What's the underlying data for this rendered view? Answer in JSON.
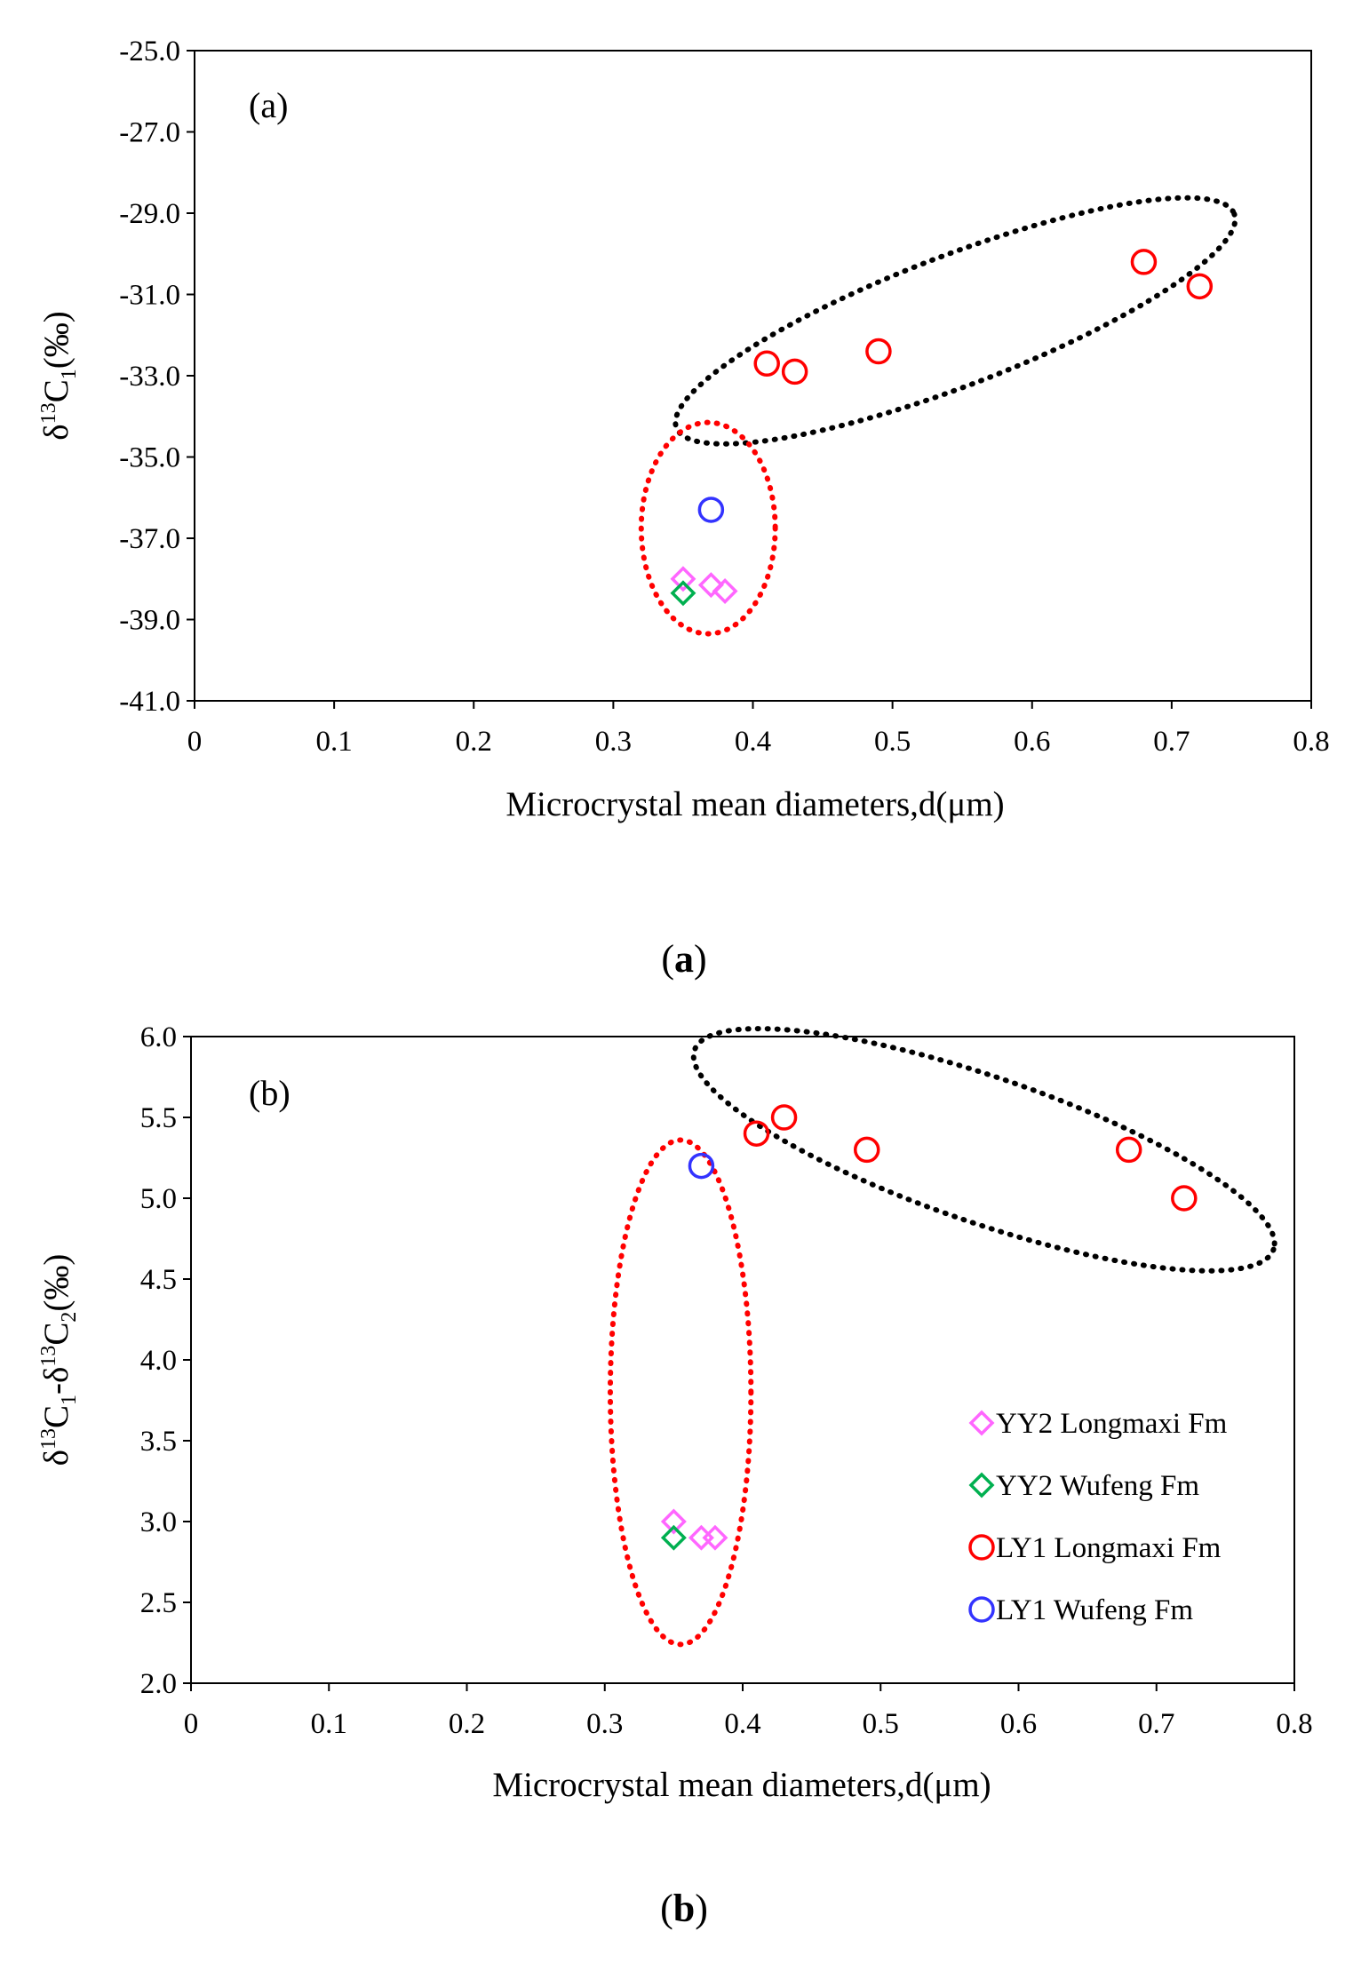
{
  "charts": [
    {
      "type": "scatter",
      "panel_label": "(a)",
      "caption_letter": "a",
      "xlabel": "Microcrystal mean diameters,d(μm)",
      "ylabel": {
        "pre": "δ",
        "sup1": "13",
        "base": "C",
        "sub1": "1",
        "post": "(‰)"
      },
      "xlim": [
        0,
        0.8
      ],
      "ylim": [
        -41.0,
        -25.0
      ],
      "xticks": [
        "0",
        "0.1",
        "0.2",
        "0.3",
        "0.4",
        "0.5",
        "0.6",
        "0.7",
        "0.8"
      ],
      "yticks": [
        "-41.0",
        "-39.0",
        "-37.0",
        "-35.0",
        "-33.0",
        "-31.0",
        "-29.0",
        "-27.0",
        "-25.0"
      ],
      "series": [
        {
          "name": "YY2 Longmaxi Fm",
          "marker": "diamond",
          "color": "#ff66ff",
          "x": [
            0.35,
            0.37,
            0.38
          ],
          "y": [
            -38.0,
            -38.15,
            -38.3
          ]
        },
        {
          "name": "YY2 Wufeng Fm",
          "marker": "diamond",
          "color": "#00b050",
          "x": [
            0.35
          ],
          "y": [
            -38.35
          ]
        },
        {
          "name": "LY1 Longmaxi Fm",
          "marker": "circle",
          "color": "#ff0000",
          "x": [
            0.41,
            0.43,
            0.49,
            0.68,
            0.72
          ],
          "y": [
            -32.7,
            -32.9,
            -32.4,
            -30.2,
            -30.8
          ]
        },
        {
          "name": "LY1 Wufeng Fm",
          "marker": "circle",
          "color": "#3333ff",
          "x": [
            0.37
          ],
          "y": [
            -36.3
          ]
        }
      ],
      "groupings": [
        {
          "name": "black-group",
          "color": "#000000",
          "cx": 0.545,
          "cy": -31.65,
          "rx": 0.214,
          "ry": 1.6,
          "rotate_deg": -21
        },
        {
          "name": "red-group",
          "color": "#ff0000",
          "cx": 0.368,
          "cy": -36.75,
          "rx": 0.048,
          "ry": 2.6,
          "rotate_deg": 0
        }
      ]
    },
    {
      "type": "scatter",
      "panel_label": "(b)",
      "caption_letter": "b",
      "xlabel": "Microcrystal mean diameters,d(μm)",
      "ylabel": {
        "pre": "δ",
        "sup1": "13",
        "base": "C",
        "sub1": "1",
        "mid": "-δ",
        "sup2": "13",
        "base2": "C",
        "sub2": "2",
        "post": "(‰)"
      },
      "xlim": [
        0,
        0.8
      ],
      "ylim": [
        2.0,
        6.0
      ],
      "xticks": [
        "0",
        "0.1",
        "0.2",
        "0.3",
        "0.4",
        "0.5",
        "0.6",
        "0.7",
        "0.8"
      ],
      "yticks": [
        "2.0",
        "2.5",
        "3.0",
        "3.5",
        "4.0",
        "4.5",
        "5.0",
        "5.5",
        "6.0"
      ],
      "series": [
        {
          "name": "YY2 Longmaxi Fm",
          "marker": "diamond",
          "color": "#ff66ff",
          "x": [
            0.35,
            0.37,
            0.38
          ],
          "y": [
            3.0,
            2.9,
            2.9
          ]
        },
        {
          "name": "YY2 Wufeng Fm",
          "marker": "diamond",
          "color": "#00b050",
          "x": [
            0.35
          ],
          "y": [
            2.9
          ]
        },
        {
          "name": "LY1 Longmaxi Fm",
          "marker": "circle",
          "color": "#ff0000",
          "x": [
            0.41,
            0.43,
            0.49,
            0.68,
            0.72
          ],
          "y": [
            5.4,
            5.5,
            5.3,
            5.3,
            5.0
          ]
        },
        {
          "name": "LY1 Wufeng Fm",
          "marker": "circle",
          "color": "#3333ff",
          "x": [
            0.37
          ],
          "y": [
            5.2
          ]
        }
      ],
      "legend": {
        "position": "right",
        "entries": [
          "YY2 Longmaxi Fm",
          "YY2 Wufeng Fm",
          "LY1 Longmaxi Fm",
          "LY1 Wufeng Fm"
        ]
      },
      "groupings": [
        {
          "name": "black-group",
          "color": "#000000",
          "cx": 0.575,
          "cy": 5.3,
          "rx": 0.222,
          "ry": 0.45,
          "rotate_deg": 19
        },
        {
          "name": "red-group",
          "color": "#ff0000",
          "cx": 0.355,
          "cy": 3.8,
          "rx": 0.051,
          "ry": 1.56,
          "rotate_deg": 0
        }
      ]
    }
  ]
}
